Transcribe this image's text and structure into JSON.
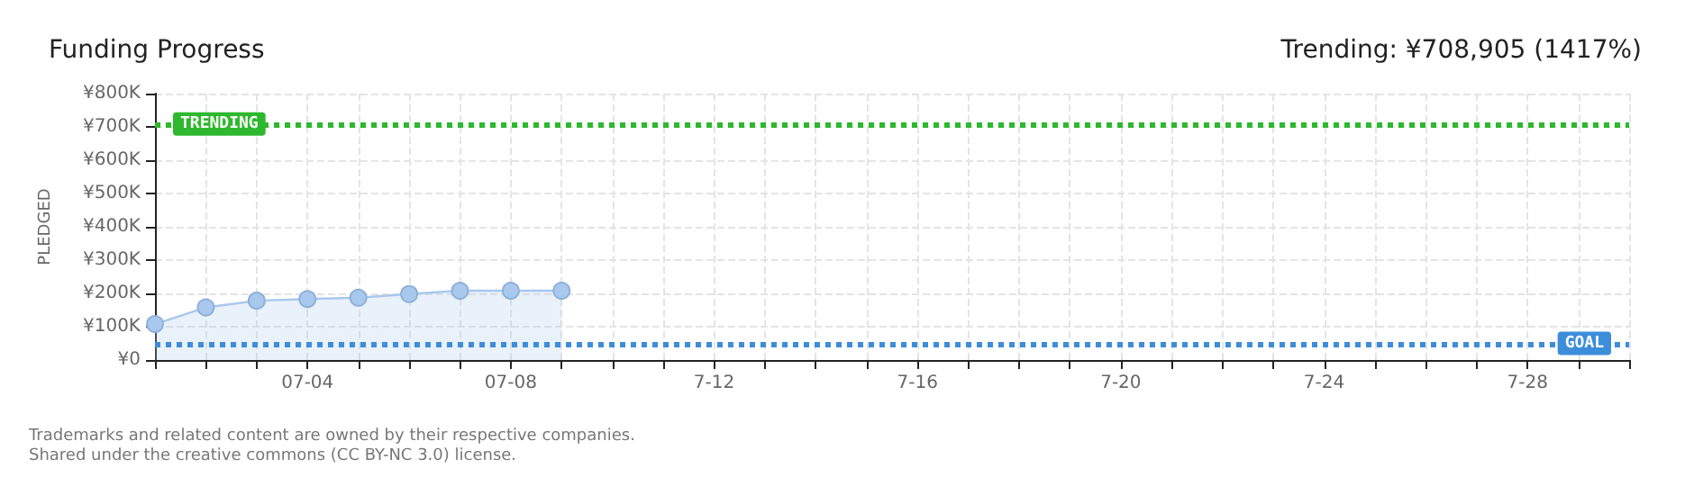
{
  "chart_data": {
    "type": "area",
    "title": "Funding Progress",
    "subtitle": "Trending: ¥708,905 (1417%)",
    "ylabel": "PLEDGED",
    "x": [
      "--07-01",
      "--07-02",
      "--07-03",
      "--07-04",
      "--07-05",
      "--07-06",
      "--07-07",
      "--07-08",
      "--07-09"
    ],
    "series": [
      {
        "color": "#a9c8ee",
        "values": [
          108000,
          158000,
          178000,
          183000,
          187000,
          198000,
          208000,
          208000,
          208000
        ]
      }
    ],
    "xlim": [
      "--07-01",
      "--07-30"
    ],
    "xticks": [
      {
        "value": "--07-01",
        "label": null
      },
      {
        "value": "--07-02",
        "label": null
      },
      {
        "value": "--07-03",
        "label": null
      },
      {
        "value": "--07-04",
        "label": "07-04"
      },
      {
        "value": "--07-05",
        "label": null
      },
      {
        "value": "--07-06",
        "label": null
      },
      {
        "value": "--07-07",
        "label": null
      },
      {
        "value": "--07-08",
        "label": "07-08"
      },
      {
        "value": "--07-09",
        "label": null
      },
      {
        "value": "--07-10",
        "label": null
      },
      {
        "value": "--07-11",
        "label": null
      },
      {
        "value": "--07-12",
        "label": "7-12"
      },
      {
        "value": "--07-13",
        "label": null
      },
      {
        "value": "--07-14",
        "label": null
      },
      {
        "value": "--07-15",
        "label": null
      },
      {
        "value": "--07-16",
        "label": "7-16"
      },
      {
        "value": "--07-17",
        "label": null
      },
      {
        "value": "--07-18",
        "label": null
      },
      {
        "value": "--07-19",
        "label": null
      },
      {
        "value": "--07-20",
        "label": "7-20"
      },
      {
        "value": "--07-21",
        "label": null
      },
      {
        "value": "--07-22",
        "label": null
      },
      {
        "value": "--07-23",
        "label": null
      },
      {
        "value": "--07-24",
        "label": "7-24"
      },
      {
        "value": "--07-25",
        "label": null
      },
      {
        "value": "--07-26",
        "label": null
      },
      {
        "value": "--07-27",
        "label": null
      },
      {
        "value": "--07-28",
        "label": "7-28"
      },
      {
        "value": "--07-29",
        "label": null
      },
      {
        "value": "--07-30",
        "label": null
      }
    ],
    "ylim": [
      0,
      800000
    ],
    "yticks": [
      {
        "value": 0,
        "label": "¥0"
      },
      {
        "value": 100000,
        "label": "¥100K"
      },
      {
        "value": 200000,
        "label": "¥200K"
      },
      {
        "value": 300000,
        "label": "¥300K"
      },
      {
        "value": 400000,
        "label": "¥400K"
      },
      {
        "value": 500000,
        "label": "¥500K"
      },
      {
        "value": 600000,
        "label": "¥600K"
      },
      {
        "value": 700000,
        "label": "¥700K"
      },
      {
        "value": 800000,
        "label": "¥800K"
      }
    ],
    "ref_lines": [
      {
        "axis": "y",
        "value": 708905,
        "label": "TRENDING",
        "color": "#2db82d",
        "line_style": "dotted"
      },
      {
        "axis": "y",
        "value": 50000,
        "label": "GOAL",
        "color": "#3d8ddb",
        "line_style": "dotted"
      }
    ],
    "grid": true,
    "marker": "circle",
    "annotations": [
      "Trademarks and related content are owned by their respective companies.",
      "Shared under the creative commons (CC BY-NC 3.0) license."
    ]
  }
}
